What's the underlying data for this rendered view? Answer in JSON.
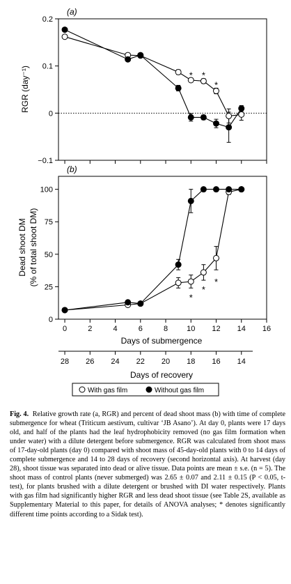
{
  "figure": {
    "panel_a_label": "(a)",
    "panel_b_label": "(b)",
    "legend": {
      "with_gas_film": "With gas film",
      "without_gas_film": "Without gas film"
    },
    "caption": {
      "figure_label": "Fig. 4.",
      "text": "Relative growth rate (a, RGR) and percent of dead shoot mass (b) with time of complete submergence for wheat (Triticum aestivum, cultivar ‘JB Asano’). At day 0, plants were 17 days old, and half of the plants had the leaf hydrophobicity removed (no gas film formation when under water) with a dilute detergent before submergence. RGR was calculated from shoot mass of 17-day-old plants (day 0) compared with shoot mass of 45-day-old plants with 0 to 14 days of complete submergence and 14 to 28 days of recovery (second horizontal axis). At harvest (day 28), shoot tissue was separated into dead or alive tissue. Data points are mean ± s.e. (n = 5). The shoot mass of control plants (never submerged) was 2.65 ± 0.07 and 2.11 ± 0.15 (P < 0.05, t-test), for plants brushed with a dilute detergent or brushed with DI water respectively. Plants with gas film had significantly higher RGR and less dead shoot tissue (see Table 2S, available as Supplementary Material to this paper, for details of ANOVA analyses; * denotes significantly different time points according to a Sidak test)."
    }
  },
  "chart_data": [
    {
      "type": "scatter",
      "panel": "(a)",
      "ylabel": "RGR (day⁻¹)",
      "xlim": [
        -0.5,
        16
      ],
      "ylim": [
        -0.1,
        0.2
      ],
      "yticks": [
        "0.2",
        "0.1",
        "0",
        "−0.1"
      ],
      "ytick_values": [
        0.2,
        0.1,
        0,
        -0.1
      ],
      "xticks_values": [
        0,
        2,
        4,
        6,
        8,
        10,
        12,
        14,
        16
      ],
      "reference_line": {
        "y": 0,
        "style": "dotted"
      },
      "series": [
        {
          "name": "With gas film",
          "marker": "open-circle",
          "x": [
            0,
            5,
            6,
            9,
            10,
            11,
            12,
            13,
            14
          ],
          "y": [
            0.162,
            0.123,
            0.122,
            0.087,
            0.07,
            0.068,
            0.047,
            -0.006,
            -0.003
          ],
          "err": [
            0,
            0.004,
            0,
            0.005,
            0,
            0.005,
            0.006,
            0.015,
            0.012
          ]
        },
        {
          "name": "Without gas film",
          "marker": "filled-circle",
          "x": [
            0,
            5,
            6,
            9,
            10,
            11,
            12,
            13,
            14
          ],
          "y": [
            0.177,
            0.114,
            0.123,
            0.053,
            -0.009,
            -0.009,
            -0.022,
            -0.03,
            0.01
          ],
          "err": [
            0,
            0,
            0,
            0.006,
            0.008,
            0.005,
            0.009,
            0.032,
            0.006
          ]
        }
      ],
      "significance": [
        {
          "x": 10,
          "y": 0.081,
          "label": "*"
        },
        {
          "x": 11,
          "y": 0.081,
          "label": "*"
        },
        {
          "x": 12,
          "y": 0.06,
          "label": "*"
        }
      ]
    },
    {
      "type": "scatter",
      "panel": "(b)",
      "ylabel": "Dead shoot DM",
      "ylabel2": "(% of total shoot DM)",
      "xlabel": "Days of submergence",
      "xlabel2": "Days of recovery",
      "xlim": [
        -0.5,
        16
      ],
      "ylim": [
        0,
        110
      ],
      "yticks": [
        "0",
        "25",
        "50",
        "75",
        "100"
      ],
      "ytick_values": [
        0,
        25,
        50,
        75,
        100
      ],
      "xticks": [
        "0",
        "2",
        "4",
        "6",
        "8",
        "10",
        "12",
        "14",
        "16"
      ],
      "xtick_values": [
        0,
        2,
        4,
        6,
        8,
        10,
        12,
        14,
        16
      ],
      "recovery_ticks": [
        "28",
        "26",
        "24",
        "22",
        "20",
        "18",
        "16",
        "14"
      ],
      "recovery_tick_positions": [
        0,
        2,
        4,
        6,
        8,
        10,
        12,
        14
      ],
      "series": [
        {
          "name": "With gas film",
          "marker": "open-circle",
          "x": [
            0,
            5,
            6,
            9,
            10,
            11,
            12,
            13,
            14
          ],
          "y": [
            7,
            11,
            12,
            28,
            29,
            36,
            47,
            98,
            100
          ],
          "err": [
            1,
            1,
            1,
            4,
            5,
            6,
            9,
            2,
            0
          ]
        },
        {
          "name": "Without gas film",
          "marker": "filled-circle",
          "x": [
            0,
            5,
            6,
            9,
            10,
            11,
            12,
            13,
            14
          ],
          "y": [
            7,
            13,
            12,
            42,
            91,
            100,
            100,
            100,
            100
          ],
          "err": [
            1,
            1,
            1,
            4,
            9,
            0,
            0,
            0,
            0
          ]
        }
      ],
      "significance": [
        {
          "x": 10,
          "y": 17,
          "label": "*"
        },
        {
          "x": 11,
          "y": 23,
          "label": "*"
        },
        {
          "x": 12,
          "y": 29,
          "label": "*"
        }
      ]
    }
  ]
}
